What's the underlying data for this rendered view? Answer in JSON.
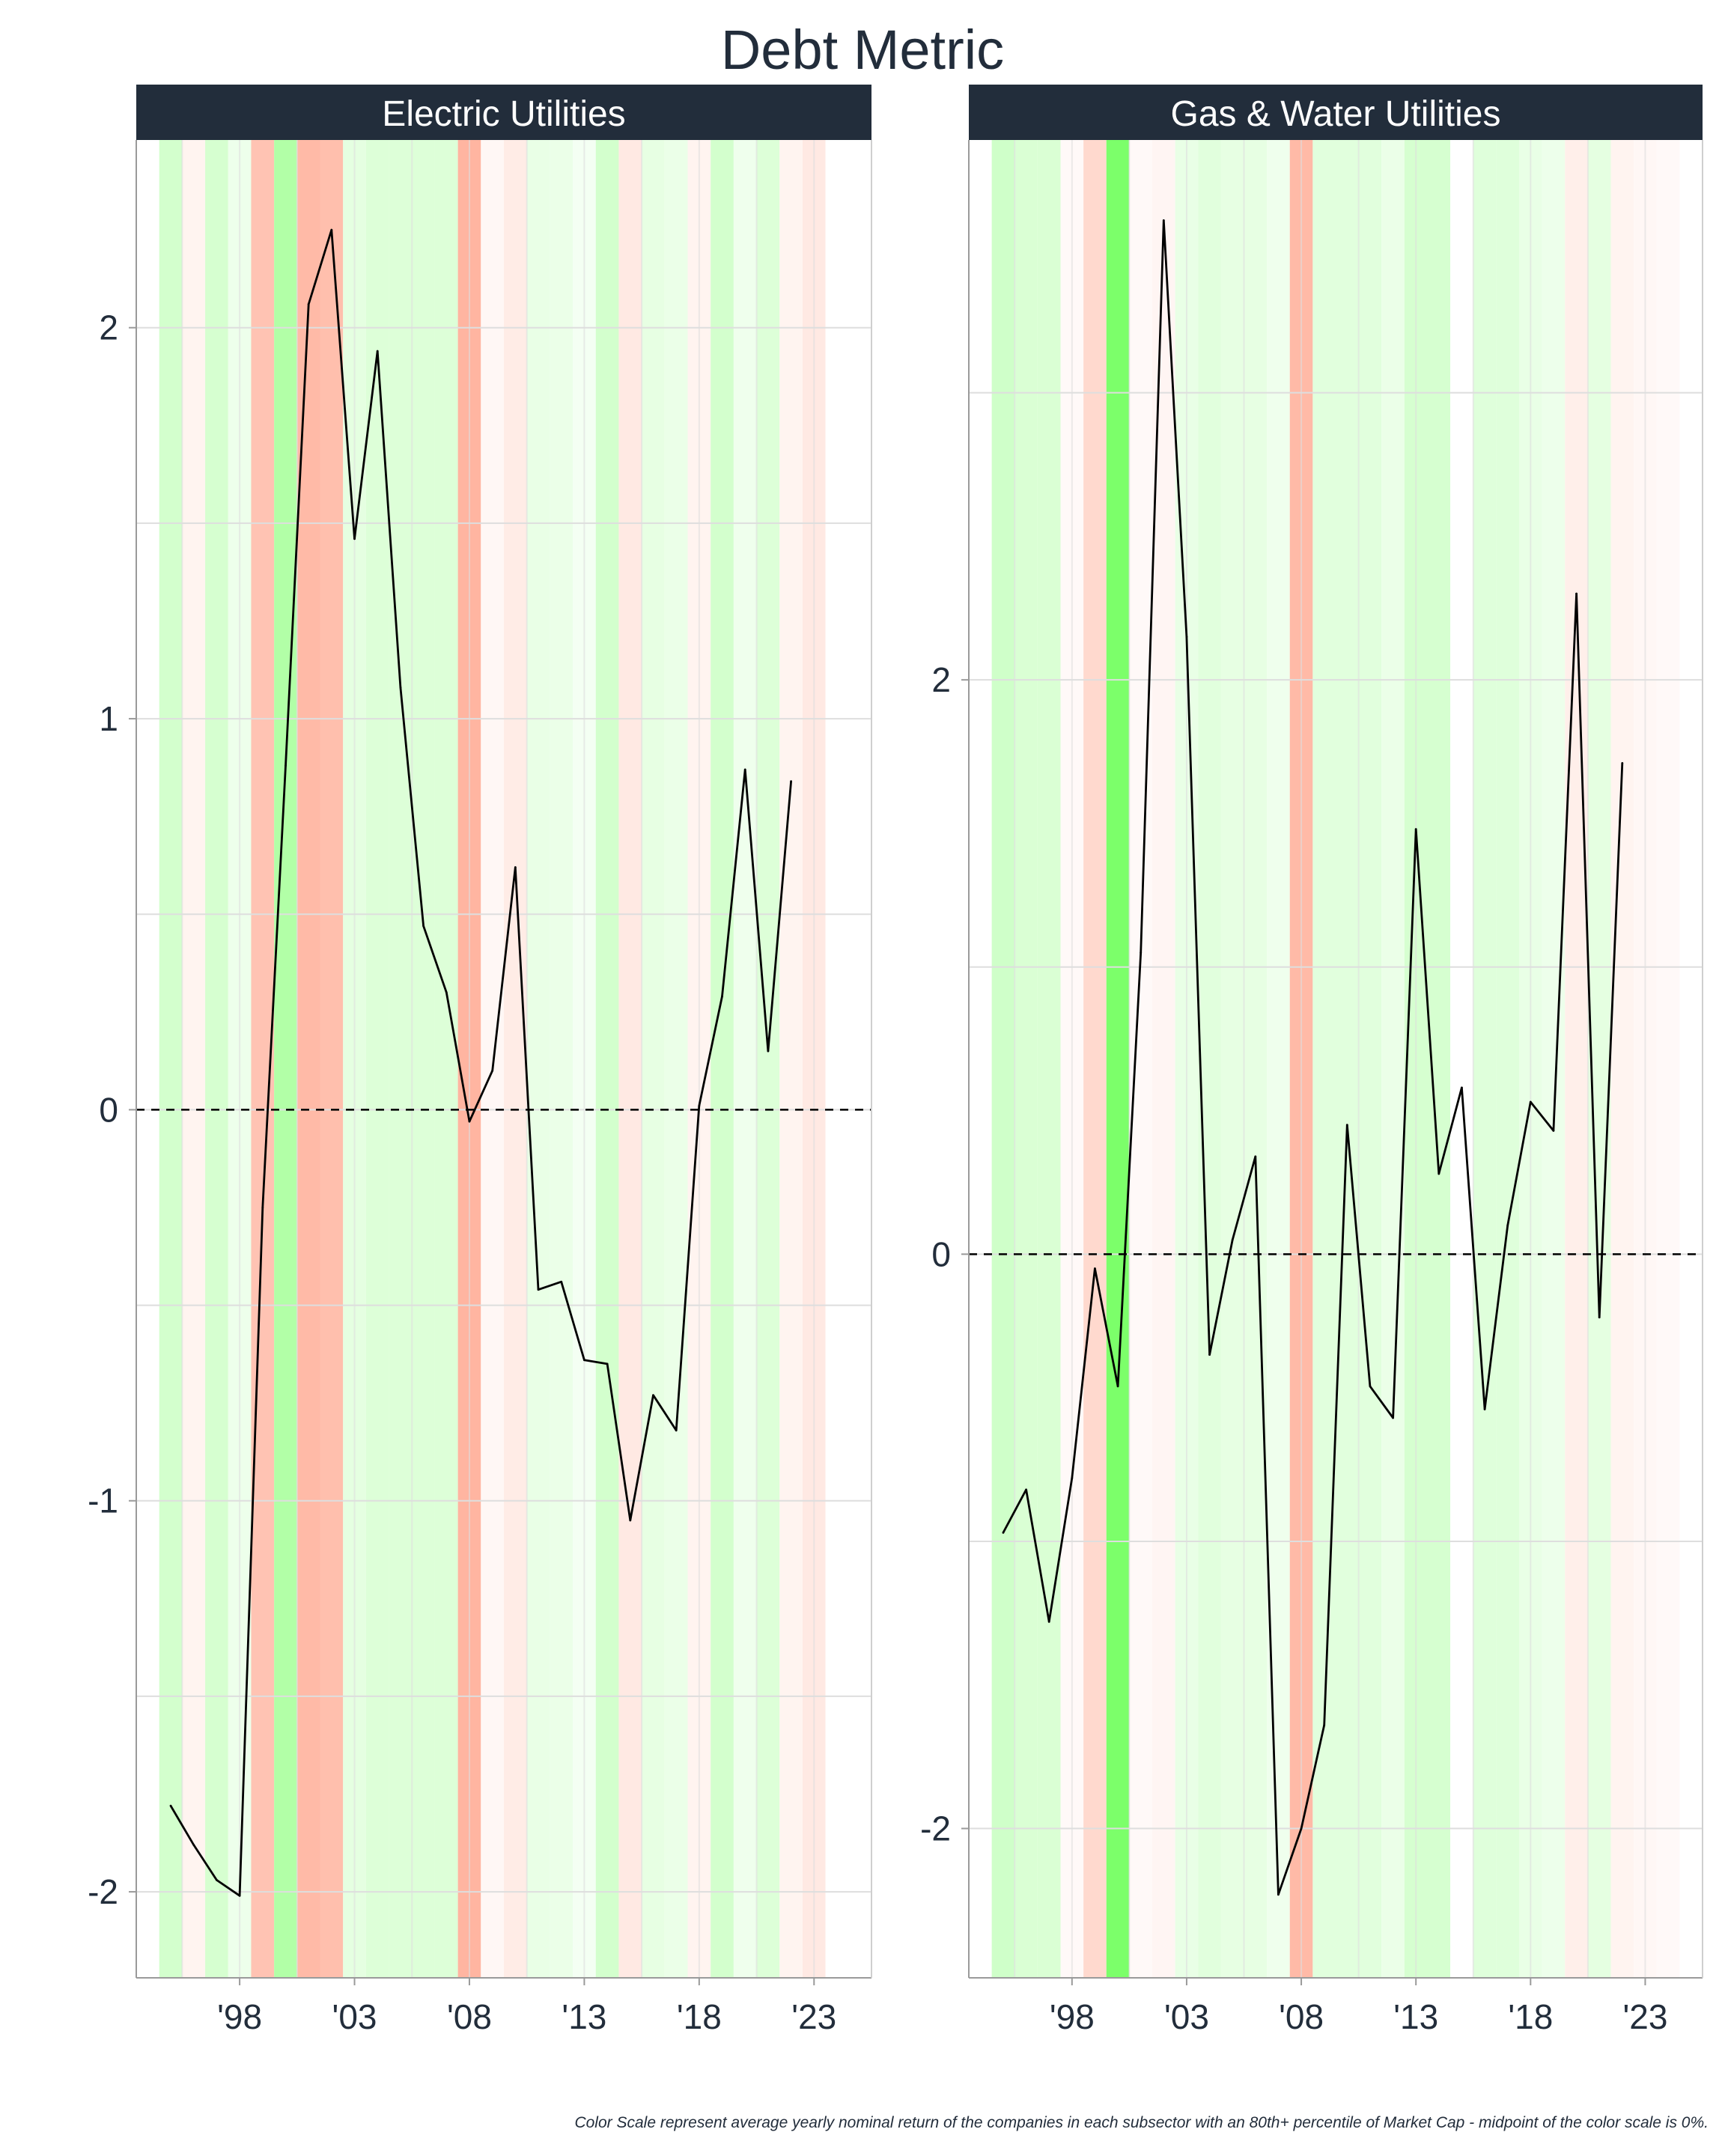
{
  "title": "Debt Metric",
  "caption": "Color Scale represent average yearly nominal return of the companies in each subsector with an 80th+ percentile of Market Cap - midpoint of the color scale is 0%.",
  "colors": {
    "strip_bg": "#222d3b",
    "text": "#222d3b",
    "grid": "#dedede",
    "line": "#000000",
    "positive": "#7cff6a",
    "negative": "#ff9f85"
  },
  "chart_data": [
    {
      "type": "line",
      "panel": "Electric Utilities",
      "x": [
        1995,
        1996,
        1997,
        1998,
        1999,
        2000,
        2001,
        2002,
        2003,
        2004,
        2005,
        2006,
        2007,
        2008,
        2009,
        2010,
        2011,
        2012,
        2013,
        2014,
        2015,
        2016,
        2017,
        2018,
        2019,
        2020,
        2021,
        2022
      ],
      "y": [
        -1.78,
        -1.88,
        -1.97,
        -2.01,
        -0.25,
        0.88,
        2.06,
        2.25,
        1.46,
        1.94,
        1.08,
        0.47,
        0.3,
        -0.03,
        0.1,
        0.62,
        -0.46,
        -0.44,
        -0.64,
        -0.65,
        -1.05,
        -0.73,
        -0.82,
        0.01,
        0.29,
        0.87,
        0.15,
        0.84
      ],
      "ylim": [
        -2.22,
        2.48
      ],
      "yticks": [
        -2,
        -1,
        0,
        1,
        2
      ],
      "ytick_labels": [
        "-2",
        "-1",
        "0",
        "1",
        "2"
      ],
      "xlim": [
        1993.5,
        2025.5
      ],
      "xticks": [
        1998,
        2003,
        2008,
        2013,
        2018,
        2023
      ],
      "xtick_labels": [
        "'98",
        "'03",
        "'08",
        "'13",
        "'18",
        "'23"
      ],
      "reference_line": 0,
      "return_bands": {
        "years": [
          1995,
          1996,
          1997,
          1998,
          1999,
          2000,
          2001,
          2002,
          2003,
          2004,
          2005,
          2006,
          2007,
          2008,
          2009,
          2010,
          2011,
          2012,
          2013,
          2014,
          2015,
          2016,
          2017,
          2018,
          2019,
          2020,
          2021,
          2022,
          2023,
          2024
        ],
        "returns": [
          0.2,
          -0.05,
          0.18,
          0.06,
          -0.45,
          0.42,
          -0.55,
          -0.5,
          0.1,
          0.14,
          0.14,
          0.14,
          0.14,
          -0.6,
          -0.03,
          -0.1,
          0.08,
          0.07,
          0.03,
          0.2,
          -0.12,
          0.09,
          0.07,
          -0.05,
          0.2,
          0.05,
          0.14,
          -0.05,
          -0.12,
          0.0
        ]
      }
    },
    {
      "type": "line",
      "panel": "Gas & Water Utilities",
      "x": [
        1995,
        1996,
        1997,
        1998,
        1999,
        2000,
        2001,
        2002,
        2003,
        2004,
        2005,
        2006,
        2007,
        2008,
        2009,
        2010,
        2011,
        2012,
        2013,
        2014,
        2015,
        2016,
        2017,
        2018,
        2019,
        2020,
        2021,
        2022
      ],
      "y": [
        -0.97,
        -0.82,
        -1.28,
        -0.78,
        -0.05,
        -0.46,
        1.05,
        3.6,
        2.15,
        -0.35,
        0.05,
        0.34,
        -2.23,
        -2.0,
        -1.64,
        0.45,
        -0.46,
        -0.57,
        1.48,
        0.28,
        0.58,
        -0.54,
        0.1,
        0.53,
        0.43,
        2.3,
        -0.22,
        1.71
      ],
      "ylim": [
        -2.52,
        3.88
      ],
      "yticks": [
        -2,
        0,
        2
      ],
      "ytick_labels": [
        "-2",
        "0",
        "2"
      ],
      "xlim": [
        1993.5,
        2025.5
      ],
      "xticks": [
        1998,
        2003,
        2008,
        2013,
        2018,
        2023
      ],
      "xtick_labels": [
        "'98",
        "'03",
        "'08",
        "'13",
        "'18",
        "'23"
      ],
      "reference_line": 0,
      "return_bands": {
        "years": [
          1995,
          1996,
          1997,
          1998,
          1999,
          2000,
          2001,
          2002,
          2003,
          2004,
          2005,
          2006,
          2007,
          2008,
          2009,
          2010,
          2011,
          2012,
          2013,
          2014,
          2015,
          2016,
          2017,
          2018,
          2019,
          2020,
          2021,
          2022,
          2023,
          2024
        ],
        "returns": [
          0.22,
          0.16,
          0.16,
          -0.02,
          -0.25,
          0.85,
          -0.02,
          -0.04,
          0.08,
          0.12,
          0.09,
          0.09,
          0.05,
          -0.55,
          0.12,
          0.12,
          0.12,
          0.07,
          0.18,
          0.18,
          0.0,
          0.13,
          0.13,
          0.08,
          0.06,
          -0.08,
          0.1,
          -0.05,
          -0.03,
          -0.02
        ]
      }
    }
  ]
}
